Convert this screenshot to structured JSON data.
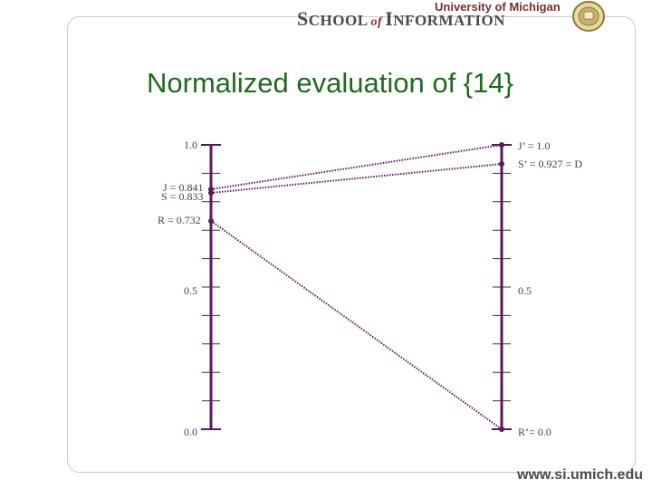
{
  "header": {
    "university": "University of Michigan",
    "school_prefix": "S",
    "school_word1": "CHOOL",
    "school_of": "of",
    "school_prefix2": "I",
    "school_word2": "NFORMATION",
    "seal_icon": "university-seal-icon"
  },
  "title": "Normalized evaluation of {14}",
  "footer": "www.si.umich.edu",
  "colors": {
    "axis": "#5a1a5a",
    "title": "#1f6b1f"
  },
  "diagram": {
    "left_axis_labels": [
      "1.0",
      "0.5",
      "0.0"
    ],
    "right_axis_labels": [
      "0.5"
    ],
    "left_points": [
      {
        "label": "J = 0.841",
        "value": 0.841
      },
      {
        "label": "S = 0.833",
        "value": 0.833
      },
      {
        "label": "R = 0.732",
        "value": 0.732
      }
    ],
    "right_points": [
      {
        "label": "J’ = 1.0",
        "value": 1.0
      },
      {
        "label": "S’ = 0.927 = D",
        "value": 0.927
      },
      {
        "label": "R’= 0.0",
        "value": 0.0
      }
    ]
  }
}
